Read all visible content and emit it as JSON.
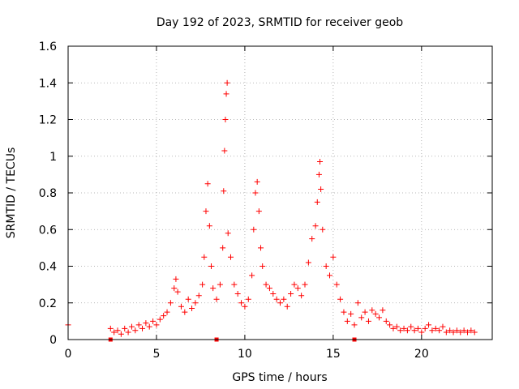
{
  "chart_data": {
    "type": "scatter",
    "title": "Day 192 of 2023, SRMTID for receiver geob",
    "xlabel": "GPS time / hours",
    "ylabel": "SRMTID / TECUs",
    "xlim": [
      0,
      24
    ],
    "ylim": [
      0,
      1.6
    ],
    "x_ticks": [
      0,
      5,
      10,
      15,
      20
    ],
    "x_tick_labels": [
      "0",
      "5",
      "10",
      "15",
      "20"
    ],
    "y_ticks": [
      0,
      0.2,
      0.4,
      0.6,
      0.8,
      1.0,
      1.2,
      1.4,
      1.6
    ],
    "y_tick_labels": [
      "0",
      "0.2",
      "0.4",
      "0.6",
      "0.8",
      "1",
      "1.2",
      "1.4",
      "1.6"
    ],
    "grid": true,
    "marker": "plus",
    "color": "#ff0000",
    "gap_markers_x": [
      2.4,
      8.4,
      16.2
    ],
    "series": [
      {
        "name": "SRMTID",
        "points": [
          [
            0.0,
            0.08
          ],
          [
            2.4,
            0.06
          ],
          [
            2.6,
            0.04
          ],
          [
            2.8,
            0.05
          ],
          [
            3.0,
            0.03
          ],
          [
            3.2,
            0.06
          ],
          [
            3.4,
            0.04
          ],
          [
            3.6,
            0.07
          ],
          [
            3.8,
            0.05
          ],
          [
            4.0,
            0.08
          ],
          [
            4.2,
            0.06
          ],
          [
            4.4,
            0.09
          ],
          [
            4.6,
            0.07
          ],
          [
            4.8,
            0.1
          ],
          [
            5.0,
            0.08
          ],
          [
            5.2,
            0.11
          ],
          [
            5.4,
            0.13
          ],
          [
            5.6,
            0.15
          ],
          [
            5.8,
            0.2
          ],
          [
            6.0,
            0.28
          ],
          [
            6.1,
            0.33
          ],
          [
            6.2,
            0.26
          ],
          [
            6.4,
            0.18
          ],
          [
            6.6,
            0.15
          ],
          [
            6.8,
            0.22
          ],
          [
            7.0,
            0.17
          ],
          [
            7.2,
            0.2
          ],
          [
            7.4,
            0.24
          ],
          [
            7.6,
            0.3
          ],
          [
            7.7,
            0.45
          ],
          [
            7.8,
            0.7
          ],
          [
            7.9,
            0.85
          ],
          [
            8.0,
            0.62
          ],
          [
            8.1,
            0.4
          ],
          [
            8.2,
            0.28
          ],
          [
            8.4,
            0.22
          ],
          [
            8.6,
            0.3
          ],
          [
            8.75,
            0.5
          ],
          [
            8.8,
            0.81
          ],
          [
            8.85,
            1.03
          ],
          [
            8.9,
            1.2
          ],
          [
            8.95,
            1.34
          ],
          [
            9.0,
            1.4
          ],
          [
            9.05,
            0.58
          ],
          [
            9.2,
            0.45
          ],
          [
            9.4,
            0.3
          ],
          [
            9.6,
            0.25
          ],
          [
            9.8,
            0.2
          ],
          [
            10.0,
            0.18
          ],
          [
            10.2,
            0.22
          ],
          [
            10.4,
            0.35
          ],
          [
            10.5,
            0.6
          ],
          [
            10.6,
            0.8
          ],
          [
            10.7,
            0.86
          ],
          [
            10.8,
            0.7
          ],
          [
            10.9,
            0.5
          ],
          [
            11.0,
            0.4
          ],
          [
            11.2,
            0.3
          ],
          [
            11.4,
            0.28
          ],
          [
            11.6,
            0.25
          ],
          [
            11.8,
            0.22
          ],
          [
            12.0,
            0.2
          ],
          [
            12.2,
            0.22
          ],
          [
            12.4,
            0.18
          ],
          [
            12.6,
            0.25
          ],
          [
            12.8,
            0.3
          ],
          [
            13.0,
            0.28
          ],
          [
            13.2,
            0.24
          ],
          [
            13.4,
            0.3
          ],
          [
            13.6,
            0.42
          ],
          [
            13.8,
            0.55
          ],
          [
            14.0,
            0.62
          ],
          [
            14.1,
            0.75
          ],
          [
            14.2,
            0.9
          ],
          [
            14.25,
            0.97
          ],
          [
            14.3,
            0.82
          ],
          [
            14.4,
            0.6
          ],
          [
            14.6,
            0.4
          ],
          [
            14.8,
            0.35
          ],
          [
            15.0,
            0.45
          ],
          [
            15.2,
            0.3
          ],
          [
            15.4,
            0.22
          ],
          [
            15.6,
            0.15
          ],
          [
            15.8,
            0.1
          ],
          [
            16.0,
            0.14
          ],
          [
            16.2,
            0.08
          ],
          [
            16.4,
            0.2
          ],
          [
            16.6,
            0.12
          ],
          [
            16.8,
            0.15
          ],
          [
            17.0,
            0.1
          ],
          [
            17.2,
            0.16
          ],
          [
            17.4,
            0.14
          ],
          [
            17.6,
            0.12
          ],
          [
            17.8,
            0.16
          ],
          [
            18.0,
            0.1
          ],
          [
            18.2,
            0.08
          ],
          [
            18.4,
            0.06
          ],
          [
            18.6,
            0.07
          ],
          [
            18.8,
            0.05
          ],
          [
            19.0,
            0.06
          ],
          [
            19.2,
            0.05
          ],
          [
            19.4,
            0.07
          ],
          [
            19.6,
            0.05
          ],
          [
            19.8,
            0.06
          ],
          [
            20.0,
            0.04
          ],
          [
            20.2,
            0.06
          ],
          [
            20.4,
            0.08
          ],
          [
            20.6,
            0.05
          ],
          [
            20.8,
            0.06
          ],
          [
            21.0,
            0.05
          ],
          [
            21.2,
            0.07
          ],
          [
            21.4,
            0.04
          ],
          [
            21.6,
            0.05
          ],
          [
            21.8,
            0.04
          ],
          [
            22.0,
            0.05
          ],
          [
            22.2,
            0.04
          ],
          [
            22.4,
            0.05
          ],
          [
            22.6,
            0.04
          ],
          [
            22.8,
            0.05
          ],
          [
            23.0,
            0.04
          ]
        ]
      }
    ]
  }
}
